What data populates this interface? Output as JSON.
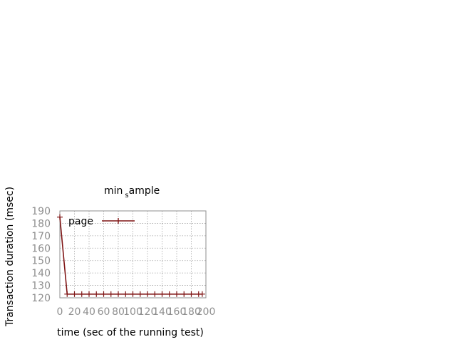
{
  "chart_data": {
    "type": "line",
    "title_main": "min",
    "title_sub": "s",
    "title_rest": "ample",
    "xlabel": "time (sec of the running test)",
    "ylabel": "Transaction duration (msec)",
    "xlim": [
      0,
      200
    ],
    "ylim": [
      120,
      190
    ],
    "xticks": [
      0,
      20,
      40,
      60,
      80,
      100,
      120,
      140,
      160,
      180,
      200
    ],
    "xtick_labels": [
      "0",
      "20",
      "40",
      "60",
      "80",
      "100",
      "120",
      "140",
      "160",
      "180",
      "200"
    ],
    "yticks": [
      120,
      130,
      140,
      150,
      160,
      170,
      180,
      190
    ],
    "ytick_labels": [
      "120",
      "130",
      "140",
      "150",
      "160",
      "170",
      "180",
      "190"
    ],
    "grid": true,
    "legend_position": "top-left",
    "series": [
      {
        "name": "page",
        "color": "#7f1515",
        "x": [
          0,
          10,
          20,
          30,
          40,
          50,
          60,
          70,
          80,
          90,
          100,
          110,
          120,
          130,
          140,
          150,
          160,
          170,
          180,
          190,
          195
        ],
        "y": [
          185,
          123,
          123,
          123,
          123,
          123,
          123,
          123,
          123,
          123,
          123,
          123,
          123,
          123,
          123,
          123,
          123,
          123,
          123,
          123,
          123
        ]
      }
    ]
  }
}
